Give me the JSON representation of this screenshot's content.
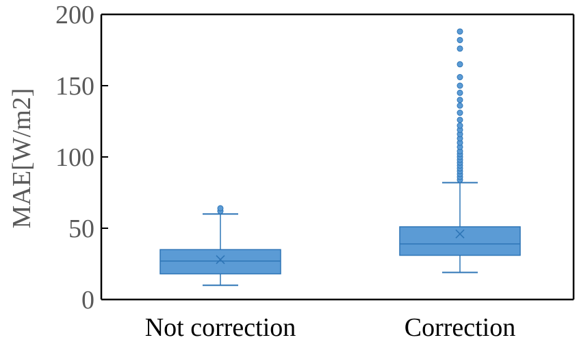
{
  "chart_data": {
    "type": "box",
    "ylabel": "MAE[W/m2]",
    "xlabel": "",
    "title": "",
    "ylim": [
      0,
      200
    ],
    "yticks": [
      0,
      50,
      100,
      150,
      200
    ],
    "grid": false,
    "color": "#5b9bd5",
    "stroke_color": "#2e75b6",
    "categories": [
      "Not correction",
      "Correction"
    ],
    "boxes": [
      {
        "category": "Not correction",
        "whisker_low": 10,
        "q1": 18,
        "median": 27,
        "q3": 35,
        "whisker_high": 60,
        "mean": 28,
        "outliers": [
          62,
          64
        ]
      },
      {
        "category": "Correction",
        "whisker_low": 19,
        "q1": 31,
        "median": 39,
        "q3": 51,
        "whisker_high": 82,
        "mean": 46,
        "outliers": [
          84,
          86,
          88,
          90,
          92,
          94,
          96,
          98,
          100,
          102,
          104,
          107,
          110,
          113,
          116,
          119,
          122,
          126,
          131,
          136,
          140,
          145,
          150,
          156,
          165,
          176,
          182,
          188
        ]
      }
    ]
  }
}
